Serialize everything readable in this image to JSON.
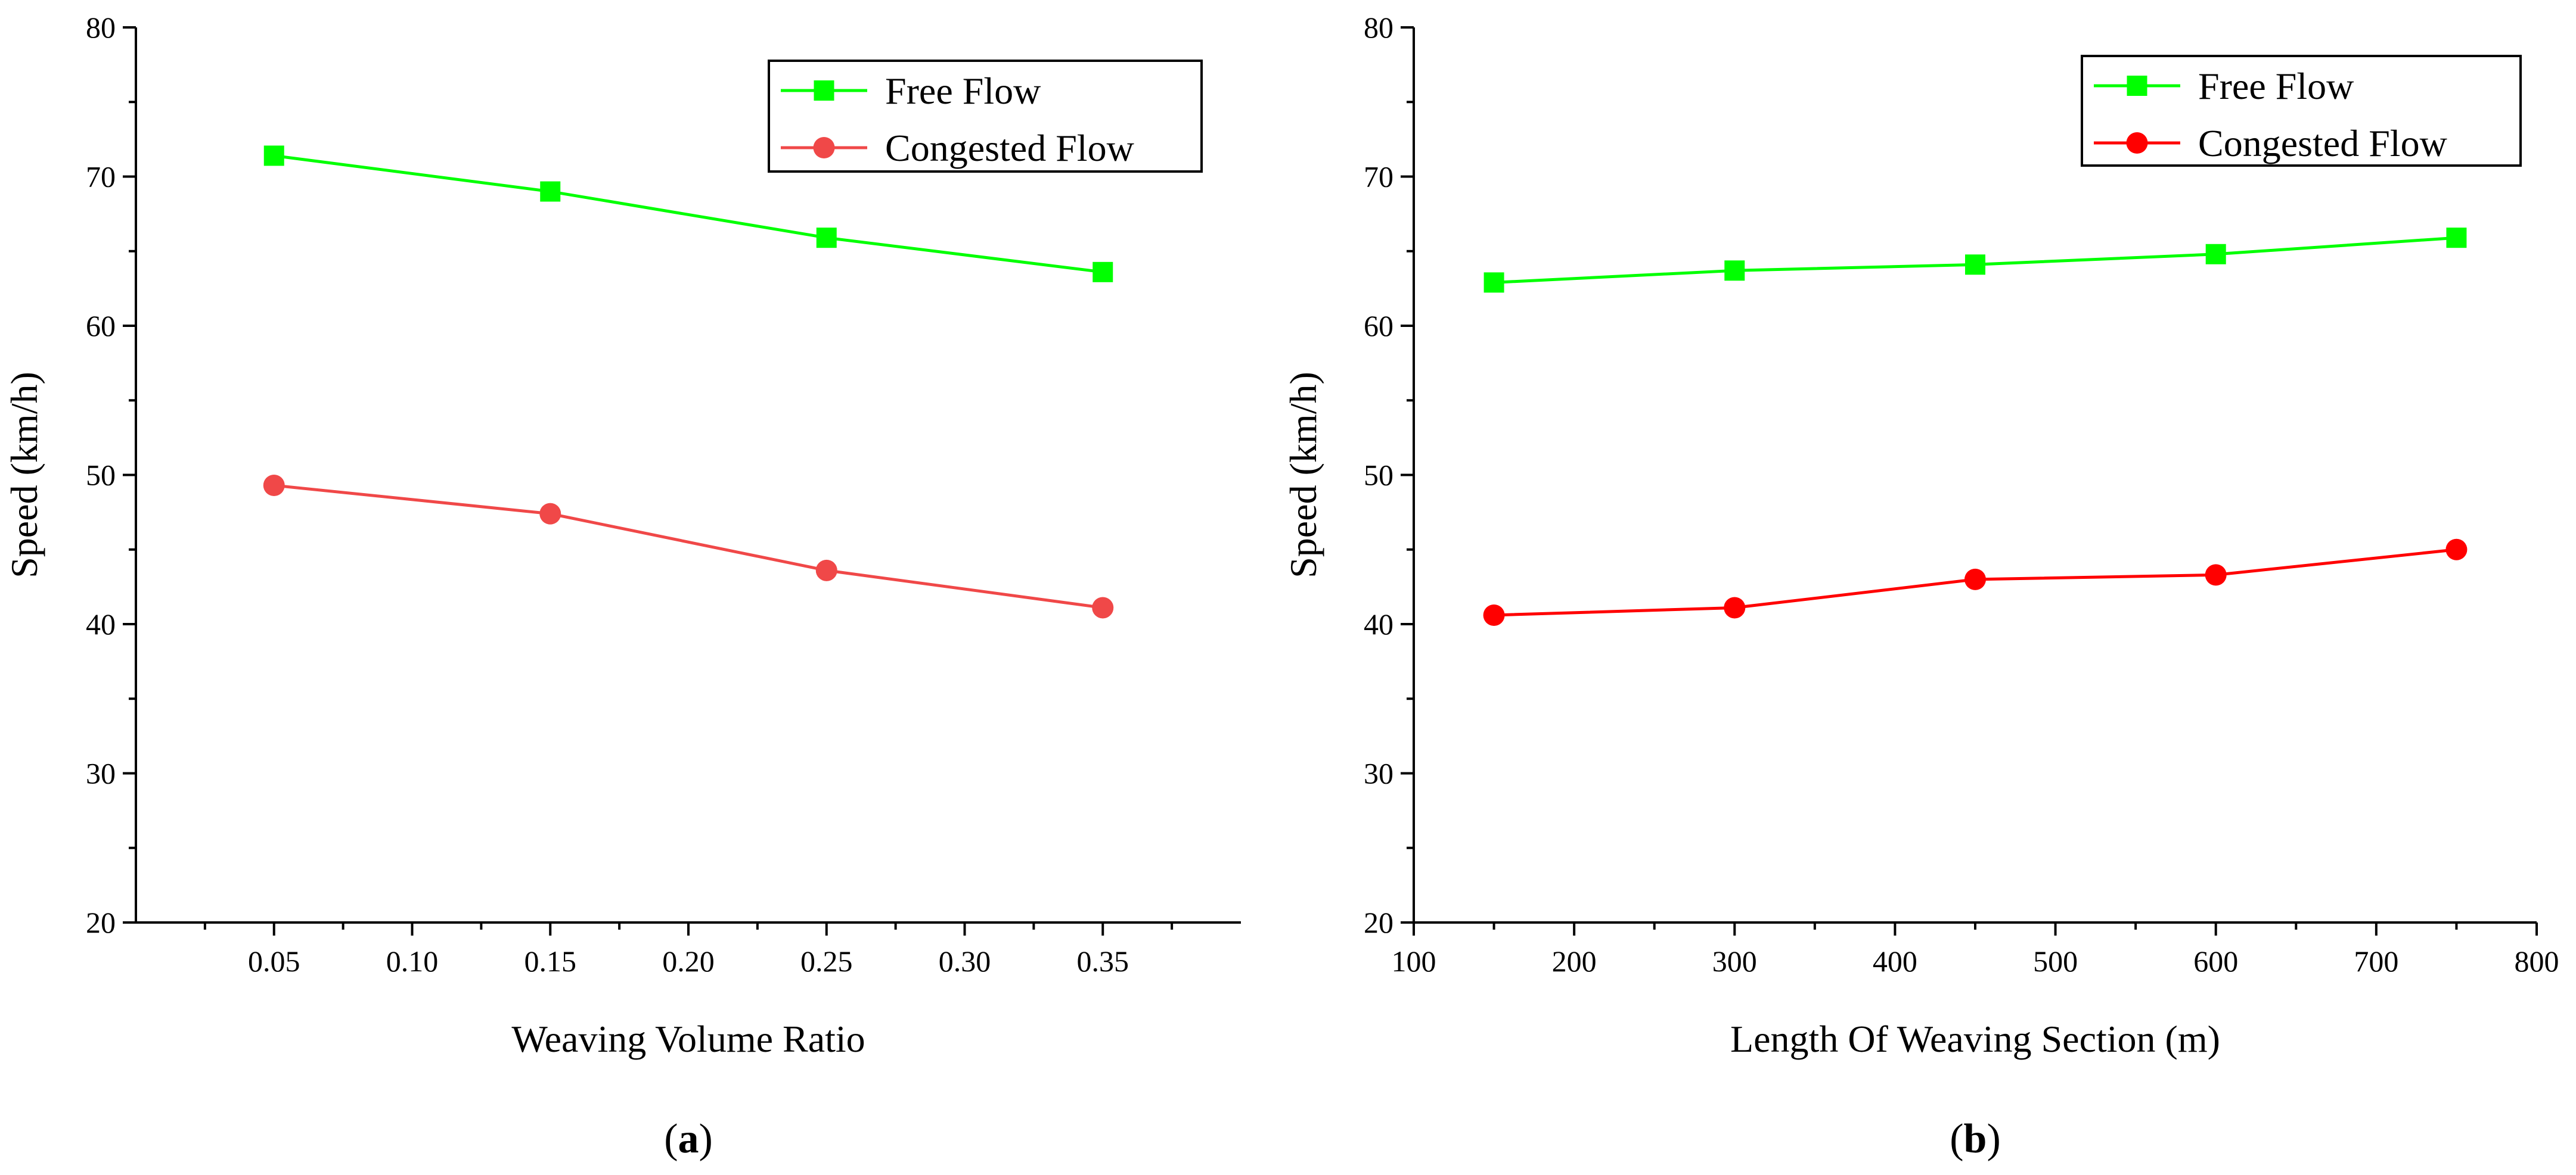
{
  "colors": {
    "free_flow": "#00ff00",
    "congested_a": "#f04848",
    "congested_b": "#ff0000",
    "axis": "#000000",
    "background": "#ffffff"
  },
  "chart_data": [
    {
      "type": "line",
      "panel_label": "a",
      "xlabel": "Weaving Volume Ratio",
      "ylabel": "Speed (km/h)",
      "x": [
        0.05,
        0.15,
        0.25,
        0.35
      ],
      "xlim": [
        0.0,
        0.4
      ],
      "ylim": [
        20,
        80
      ],
      "x_ticks": [
        "0.05",
        "0.10",
        "0.15",
        "0.20",
        "0.25",
        "0.30",
        "0.35"
      ],
      "x_tick_values": [
        0.05,
        0.1,
        0.15,
        0.2,
        0.25,
        0.3,
        0.35
      ],
      "y_ticks": [
        "20",
        "30",
        "40",
        "50",
        "60",
        "70",
        "80"
      ],
      "y_tick_values": [
        20,
        30,
        40,
        50,
        60,
        70,
        80
      ],
      "grid": false,
      "legend_position": "top-right",
      "series": [
        {
          "name": "Free Flow",
          "marker": "square",
          "color": "#00ff00",
          "values": [
            71.4,
            69.0,
            65.9,
            63.6
          ]
        },
        {
          "name": "Congested Flow",
          "marker": "circle",
          "color": "#f04848",
          "values": [
            49.3,
            47.4,
            43.6,
            41.1
          ]
        }
      ]
    },
    {
      "type": "line",
      "panel_label": "b",
      "xlabel": "Length Of Weaving Section (m)",
      "ylabel": "Speed (km/h)",
      "x": [
        150,
        300,
        450,
        600,
        750
      ],
      "xlim": [
        100,
        800
      ],
      "ylim": [
        20,
        80
      ],
      "x_ticks": [
        "100",
        "200",
        "300",
        "400",
        "500",
        "600",
        "700",
        "800"
      ],
      "x_tick_values": [
        100,
        200,
        300,
        400,
        500,
        600,
        700,
        800
      ],
      "y_ticks": [
        "20",
        "30",
        "40",
        "50",
        "60",
        "70",
        "80"
      ],
      "y_tick_values": [
        20,
        30,
        40,
        50,
        60,
        70,
        80
      ],
      "grid": false,
      "legend_position": "top-right",
      "series": [
        {
          "name": "Free Flow",
          "marker": "square",
          "color": "#00ff00",
          "values": [
            62.9,
            63.7,
            64.1,
            64.8,
            65.9
          ]
        },
        {
          "name": "Congested Flow",
          "marker": "circle",
          "color": "#ff0000",
          "values": [
            40.6,
            41.1,
            43.0,
            43.3,
            45.0
          ]
        }
      ]
    }
  ]
}
